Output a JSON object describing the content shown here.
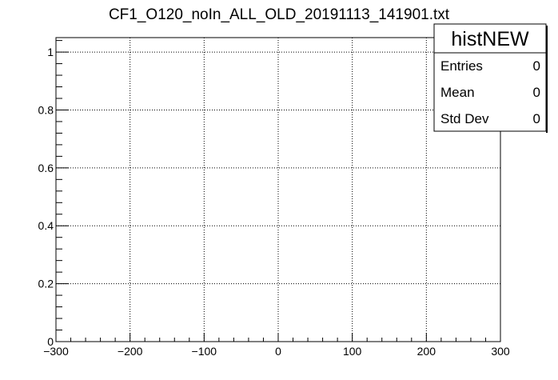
{
  "chart_data": {
    "type": "histogram",
    "title": "CF1_O120_noIn_ALL_OLD_20191113_141901.txt",
    "xlabel": "",
    "ylabel": "",
    "xlim": [
      -300,
      300
    ],
    "ylim": [
      0,
      1.05
    ],
    "x_major_ticks": [
      -300,
      -200,
      -100,
      0,
      100,
      200,
      300
    ],
    "x_tick_labels": [
      "−300",
      "−200",
      "−100",
      "0",
      "100",
      "200",
      "300"
    ],
    "y_major_ticks": [
      0,
      0.2,
      0.4,
      0.6,
      0.8,
      1
    ],
    "y_tick_labels": [
      "0",
      "0.2",
      "0.4",
      "0.6",
      "0.8",
      "1"
    ],
    "grid": true,
    "values": [],
    "stats_box": {
      "name": "histNEW",
      "placement": "top-right",
      "rows": [
        {
          "label": "Entries",
          "value": "0"
        },
        {
          "label": "Mean",
          "value": "0"
        },
        {
          "label": "Std Dev",
          "value": "0"
        }
      ]
    }
  }
}
